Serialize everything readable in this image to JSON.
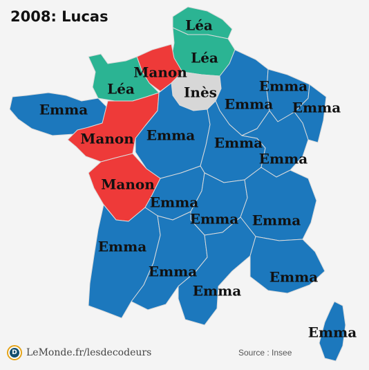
{
  "title": "2008: Lucas",
  "colors": {
    "Emma": "#1c78bd",
    "Manon": "#ee3a39",
    "Léa": "#2bb493",
    "Inès": "#d7d7d7",
    "border": "#dcdcdc",
    "background": "#f4f4f4"
  },
  "regions": [
    {
      "id": "nord",
      "name": "Léa",
      "color_key": "Léa"
    },
    {
      "id": "picardie",
      "name": "Léa",
      "color_key": "Léa"
    },
    {
      "id": "haute-normandie",
      "name": "Manon",
      "color_key": "Manon"
    },
    {
      "id": "basse-normandie",
      "name": "Léa",
      "color_key": "Léa"
    },
    {
      "id": "ile-de-france",
      "name": "Inès",
      "color_key": "Inès"
    },
    {
      "id": "champagne",
      "name": "Emma",
      "color_key": "Emma"
    },
    {
      "id": "lorraine",
      "name": "Emma",
      "color_key": "Emma"
    },
    {
      "id": "alsace",
      "name": "Emma",
      "color_key": "Emma"
    },
    {
      "id": "bretagne",
      "name": "Emma",
      "color_key": "Emma"
    },
    {
      "id": "pays-de-la-loire",
      "name": "Manon",
      "color_key": "Manon"
    },
    {
      "id": "centre",
      "name": "Emma",
      "color_key": "Emma"
    },
    {
      "id": "bourgogne",
      "name": "Emma",
      "color_key": "Emma"
    },
    {
      "id": "franche-comte",
      "name": "Emma",
      "color_key": "Emma"
    },
    {
      "id": "poitou-charentes",
      "name": "Manon",
      "color_key": "Manon"
    },
    {
      "id": "limousin",
      "name": "Emma",
      "color_key": "Emma"
    },
    {
      "id": "auvergne",
      "name": "Emma",
      "color_key": "Emma"
    },
    {
      "id": "rhone-alpes",
      "name": "Emma",
      "color_key": "Emma"
    },
    {
      "id": "aquitaine",
      "name": "Emma",
      "color_key": "Emma"
    },
    {
      "id": "midi-pyrenees",
      "name": "Emma",
      "color_key": "Emma"
    },
    {
      "id": "languedoc",
      "name": "Emma",
      "color_key": "Emma"
    },
    {
      "id": "paca",
      "name": "Emma",
      "color_key": "Emma"
    },
    {
      "id": "corse",
      "name": "Emma",
      "color_key": "Emma"
    }
  ],
  "footer": {
    "brand": "LeMonde.fr/lesdecodeurs",
    "logo_letter": "D",
    "source": "Source : Insee"
  }
}
